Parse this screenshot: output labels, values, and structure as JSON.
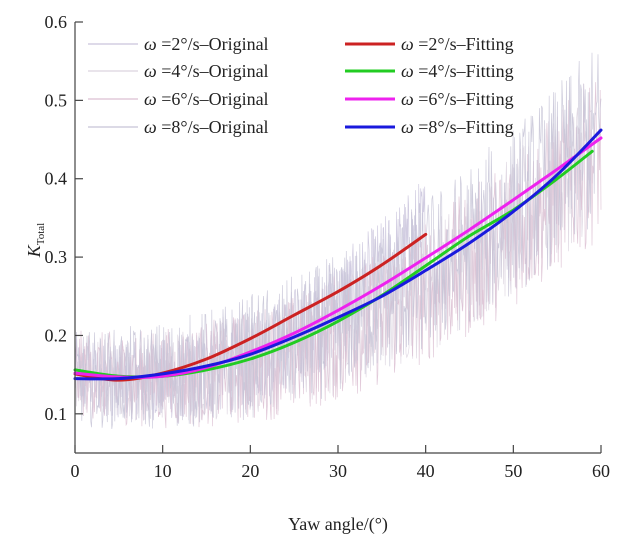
{
  "chart_data": {
    "type": "line",
    "title": "",
    "xlabel": "Yaw angle/(°)",
    "ylabel_main": "K",
    "ylabel_sub": "Total",
    "xlim": [
      0,
      60
    ],
    "ylim": [
      0.05,
      0.6
    ],
    "xticks": [
      "0",
      "10",
      "20",
      "30",
      "40",
      "50",
      "60"
    ],
    "yticks": [
      "0.1",
      "0.2",
      "0.3",
      "0.4",
      "0.5",
      "0.6"
    ],
    "grid": false,
    "legend_position": "top",
    "legend_symbol": "ω",
    "series": [
      {
        "name": "=2°/s–Original",
        "kind": "original",
        "color": "#c9c3dc",
        "x_range": [
          0,
          40
        ],
        "base": [
          0.151,
          -0.0025,
          0.000176
        ],
        "noise": 0.045
      },
      {
        "name": "=2°/s–Fitting",
        "kind": "fitting",
        "color": "#cc2222",
        "x": [
          0,
          5,
          10,
          15,
          20,
          25,
          30,
          35,
          40
        ],
        "values": [
          0.151,
          0.143,
          0.152,
          0.17,
          0.196,
          0.226,
          0.256,
          0.29,
          0.329
        ]
      },
      {
        "name": "=4°/s–Original",
        "kind": "original",
        "color": "#dcd4df",
        "x_range": [
          0,
          59
        ],
        "base": [
          0.156,
          -0.0019,
          0.000112
        ],
        "noise": 0.05
      },
      {
        "name": "=4°/s–Fitting",
        "kind": "fitting",
        "color": "#22cc22",
        "x": [
          0,
          5,
          10,
          15,
          20,
          25,
          30,
          35,
          40,
          45,
          50,
          55,
          59
        ],
        "values": [
          0.156,
          0.148,
          0.148,
          0.156,
          0.17,
          0.191,
          0.218,
          0.251,
          0.289,
          0.327,
          0.36,
          0.4,
          0.435
        ]
      },
      {
        "name": "=6°/s–Original",
        "kind": "original",
        "color": "#dcbfd2",
        "x_range": [
          0,
          60
        ],
        "base": [
          0.152,
          -0.0017,
          0.000107
        ],
        "noise": 0.055
      },
      {
        "name": "=6°/s–Fitting",
        "kind": "fitting",
        "color": "#ee22ee",
        "x": [
          0,
          5,
          10,
          15,
          20,
          25,
          30,
          35,
          40,
          45,
          50,
          55,
          60
        ],
        "values": [
          0.152,
          0.147,
          0.148,
          0.159,
          0.179,
          0.203,
          0.232,
          0.264,
          0.299,
          0.335,
          0.373,
          0.412,
          0.452
        ]
      },
      {
        "name": "=8°/s–Original",
        "kind": "original",
        "color": "#c6c3d6",
        "x_range": [
          0,
          60
        ],
        "base": [
          0.145,
          -0.0005,
          9.57e-05
        ],
        "noise": 0.06
      },
      {
        "name": "=8°/s–Fitting",
        "kind": "fitting",
        "color": "#1a1add",
        "x": [
          0,
          5,
          10,
          15,
          20,
          25,
          30,
          35,
          40,
          45,
          50,
          55,
          60
        ],
        "values": [
          0.145,
          0.145,
          0.151,
          0.161,
          0.176,
          0.198,
          0.223,
          0.25,
          0.283,
          0.318,
          0.358,
          0.405,
          0.462
        ]
      }
    ]
  }
}
